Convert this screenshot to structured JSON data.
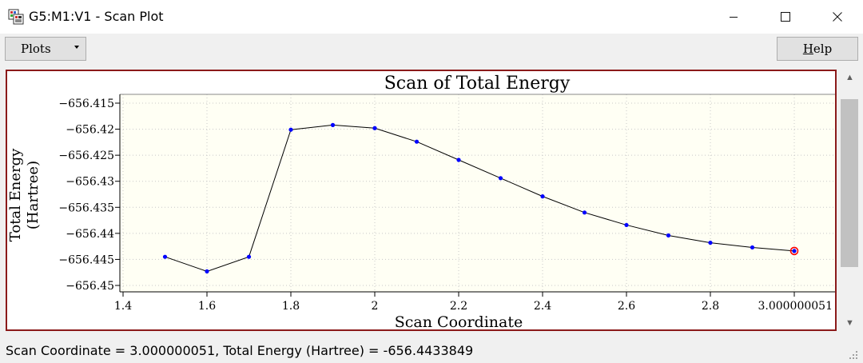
{
  "window": {
    "title": "G5:M1:V1 - Scan Plot",
    "icons": {
      "app": "app-window-icon",
      "minimize": "minimize-icon",
      "maximize": "maximize-icon",
      "close": "close-icon"
    }
  },
  "toolbar": {
    "plots_label": "Plots",
    "help_label": "Help"
  },
  "status": {
    "text": "Scan Coordinate = 3.000000051, Total Energy (Hartree) = -656.4433849"
  },
  "colors": {
    "frame_border": "#8b1a1a",
    "plot_bg": "#fffff4",
    "line": "#000000",
    "point": "#0000ff",
    "highlight": "#ff0000"
  },
  "chart_data": {
    "type": "line",
    "title": "Scan of Total Energy",
    "xlabel": "Scan Coordinate",
    "ylabel_lines": [
      "Total Energy",
      "(Hartree)"
    ],
    "xlim": [
      1.4,
      3.000000051
    ],
    "ylim": [
      -656.45,
      -656.415
    ],
    "x_ticks": [
      1.4,
      1.6,
      1.8,
      2.0,
      2.2,
      2.4,
      2.6,
      2.8,
      3.000000051
    ],
    "x_tick_labels": [
      "1.4",
      "1.6",
      "1.8",
      "2",
      "2.2",
      "2.4",
      "2.6",
      "2.8",
      "3.000000051"
    ],
    "y_ticks": [
      -656.415,
      -656.42,
      -656.425,
      -656.43,
      -656.435,
      -656.44,
      -656.445,
      -656.45
    ],
    "y_tick_labels": [
      "−656.415",
      "−656.42",
      "−656.425",
      "−656.43",
      "−656.435",
      "−656.44",
      "−656.445",
      "−656.45"
    ],
    "grid": true,
    "x": [
      1.5,
      1.6,
      1.7,
      1.8,
      1.9,
      2.0,
      2.1,
      2.2,
      2.3,
      2.4,
      2.5,
      2.6,
      2.7,
      2.8,
      2.9,
      3.000000051
    ],
    "y": [
      -656.4445,
      -656.4473,
      -656.4445,
      -656.4201,
      -656.4192,
      -656.4198,
      -656.4224,
      -656.4259,
      -656.4294,
      -656.4329,
      -656.436,
      -656.4384,
      -656.4404,
      -656.4418,
      -656.4427,
      -656.4433849
    ],
    "selected_index": 15
  }
}
